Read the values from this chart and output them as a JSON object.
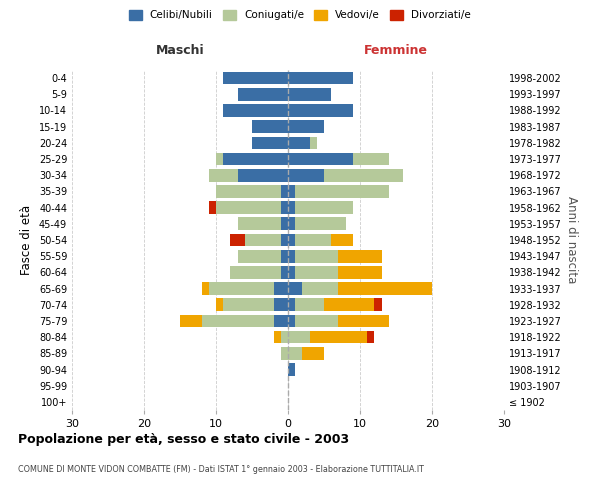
{
  "age_groups": [
    "100+",
    "95-99",
    "90-94",
    "85-89",
    "80-84",
    "75-79",
    "70-74",
    "65-69",
    "60-64",
    "55-59",
    "50-54",
    "45-49",
    "40-44",
    "35-39",
    "30-34",
    "25-29",
    "20-24",
    "15-19",
    "10-14",
    "5-9",
    "0-4"
  ],
  "birth_years": [
    "≤ 1902",
    "1903-1907",
    "1908-1912",
    "1913-1917",
    "1918-1922",
    "1923-1927",
    "1928-1932",
    "1933-1937",
    "1938-1942",
    "1943-1947",
    "1948-1952",
    "1953-1957",
    "1958-1962",
    "1963-1967",
    "1968-1972",
    "1973-1977",
    "1978-1982",
    "1983-1987",
    "1988-1992",
    "1993-1997",
    "1998-2002"
  ],
  "males": {
    "celibi": [
      0,
      0,
      0,
      0,
      0,
      2,
      2,
      2,
      1,
      1,
      1,
      1,
      1,
      1,
      7,
      9,
      5,
      5,
      9,
      7,
      9
    ],
    "coniugati": [
      0,
      0,
      0,
      1,
      1,
      10,
      7,
      9,
      7,
      6,
      5,
      6,
      9,
      9,
      4,
      1,
      0,
      0,
      0,
      0,
      0
    ],
    "vedovi": [
      0,
      0,
      0,
      0,
      1,
      3,
      1,
      1,
      0,
      0,
      0,
      0,
      0,
      0,
      0,
      0,
      0,
      0,
      0,
      0,
      0
    ],
    "divorziati": [
      0,
      0,
      0,
      0,
      0,
      0,
      0,
      0,
      0,
      0,
      2,
      0,
      1,
      0,
      0,
      0,
      0,
      0,
      0,
      0,
      0
    ]
  },
  "females": {
    "nubili": [
      0,
      0,
      1,
      0,
      0,
      1,
      1,
      2,
      1,
      1,
      1,
      1,
      1,
      1,
      5,
      9,
      3,
      5,
      9,
      6,
      9
    ],
    "coniugate": [
      0,
      0,
      0,
      2,
      3,
      6,
      4,
      5,
      6,
      6,
      5,
      7,
      8,
      13,
      11,
      5,
      1,
      0,
      0,
      0,
      0
    ],
    "vedove": [
      0,
      0,
      0,
      3,
      8,
      7,
      7,
      13,
      6,
      6,
      3,
      0,
      0,
      0,
      0,
      0,
      0,
      0,
      0,
      0,
      0
    ],
    "divorziate": [
      0,
      0,
      0,
      0,
      1,
      0,
      1,
      0,
      0,
      0,
      0,
      0,
      0,
      0,
      0,
      0,
      0,
      0,
      0,
      0,
      0
    ]
  },
  "colors": {
    "celibi_nubili": "#3a6ea5",
    "coniugati": "#b5c99a",
    "vedovi": "#f0a500",
    "divorziati": "#cc2200"
  },
  "xlim": 30,
  "title": "Popolazione per età, sesso e stato civile - 2003",
  "subtitle": "COMUNE DI MONTE VIDON COMBATTE (FM) - Dati ISTAT 1° gennaio 2003 - Elaborazione TUTTITALIA.IT",
  "ylabel": "Fasce di età",
  "right_ylabel": "Anni di nascita",
  "legend_labels": [
    "Celibi/Nubili",
    "Coniugati/e",
    "Vedovi/e",
    "Divorziati/e"
  ],
  "col_maschi": "Maschi",
  "col_femmine": "Femmine",
  "maschi_color": "#333333",
  "femmine_color": "#cc3333"
}
